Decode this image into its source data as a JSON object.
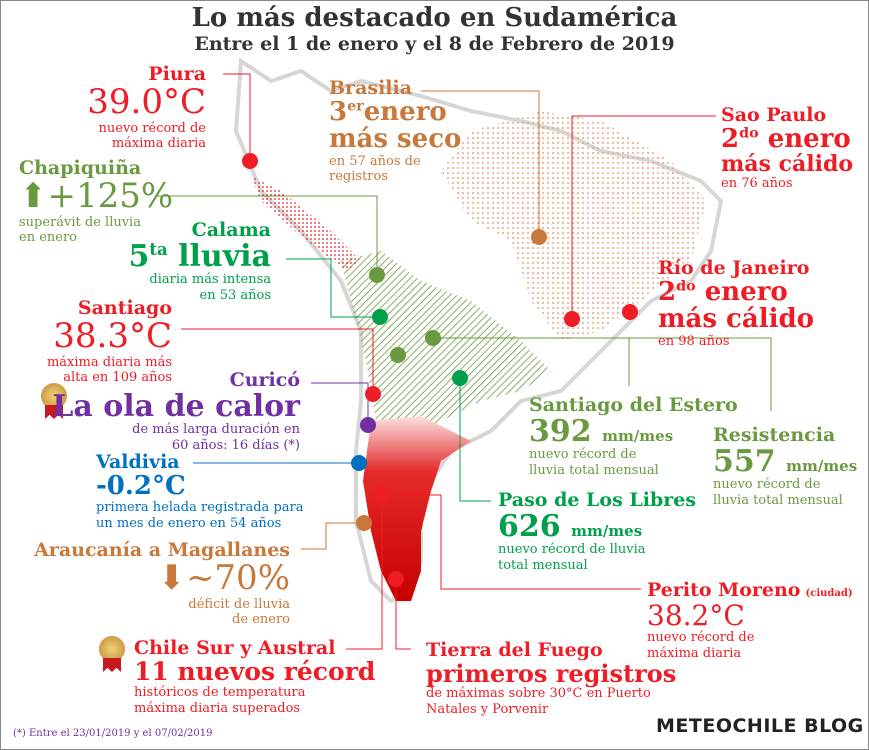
{
  "header": {
    "title": "Lo más destacado en Sudamérica",
    "subtitle": "Entre el 1 de enero y el 8 de Febrero de 2019"
  },
  "colors": {
    "red": "#ee1c25",
    "olive_green": "#6a9a40",
    "green": "#00a04b",
    "purple": "#7030a0",
    "blue": "#0070c0",
    "orange": "#c8783a"
  },
  "callouts": {
    "piura": {
      "place": "Piura",
      "value": "39.0°C",
      "desc1": "nuevo récord de",
      "desc2": "máxima diaria"
    },
    "chapiquina": {
      "place": "Chapiquiña",
      "icon": "arrow-up-icon",
      "value": "+125%",
      "desc1": "superávit de lluvia",
      "desc2": "en enero"
    },
    "calama": {
      "place": "Calama",
      "rank": "5",
      "rank_sup": "ta",
      "value": "lluvia",
      "desc1": "diaria más intensa",
      "desc2": "en 53 años"
    },
    "santiago": {
      "place": "Santiago",
      "value": "38.3°C",
      "desc1": "máxima diaria más",
      "desc2": "alta en 109 años"
    },
    "curico": {
      "place": "Curicó",
      "value": "La ola de calor",
      "desc1": "de más larga duración en",
      "desc2": "60 años: 16 días (*)"
    },
    "valdivia": {
      "place": "Valdivia",
      "value": "-0.2°C",
      "desc1": "primera helada registrada para",
      "desc2": "un mes de enero en 54 años"
    },
    "araucania": {
      "place": "Araucanía a Magallanes",
      "icon": "arrow-down-icon",
      "value": "~70%",
      "desc1": "déficit de lluvia",
      "desc2": "de enero"
    },
    "chile_sur": {
      "place": "Chile Sur y Austral",
      "value": "11 nuevos récord",
      "desc1": "históricos de temperatura",
      "desc2": "máxima diaria superados"
    },
    "brasilia": {
      "place": "Brasilia",
      "rank": "3",
      "rank_sup": "er",
      "value1": "enero",
      "value2": "más seco",
      "desc1": "en 57 años de",
      "desc2": "registros"
    },
    "sao_paulo": {
      "place": "Sao Paulo",
      "rank": "2",
      "rank_sup": "do",
      "value1": "enero",
      "value2": "más cálido",
      "desc1": "en 76 años"
    },
    "rio": {
      "place": "Río de Janeiro",
      "rank": "2",
      "rank_sup": "do",
      "value1": "enero",
      "value2": "más cálido",
      "desc1": "en 98 años"
    },
    "santiago_estero": {
      "place": "Santiago del Estero",
      "value": "392",
      "unit": "mm/mes",
      "desc1": "nuevo récord de",
      "desc2": "lluvia total mensual"
    },
    "resistencia": {
      "place": "Resistencia",
      "value": "557",
      "unit": "mm/mes",
      "desc1": "nuevo récord de",
      "desc2": "lluvia total mensual"
    },
    "paso_libres": {
      "place": "Paso de Los Libres",
      "value": "626",
      "unit": "mm/mes",
      "desc1": "nuevo récord de lluvia",
      "desc2": "total mensual"
    },
    "perito_moreno": {
      "place": "Perito Moreno",
      "place_note": "(ciudad)",
      "value": "38.2°C",
      "desc1": "nuevo récord de",
      "desc2": "máxima diaria"
    },
    "tierra_fuego": {
      "place": "Tierra del Fuego",
      "value": "primeros registros",
      "desc1": "de máximas sobre 30°C en Puerto",
      "desc2": "Natales y Porvenir"
    }
  },
  "footnote": "(*) Entre el 23/01/2019 y el 07/02/2019",
  "brand": "METEOCHILE BLOG"
}
